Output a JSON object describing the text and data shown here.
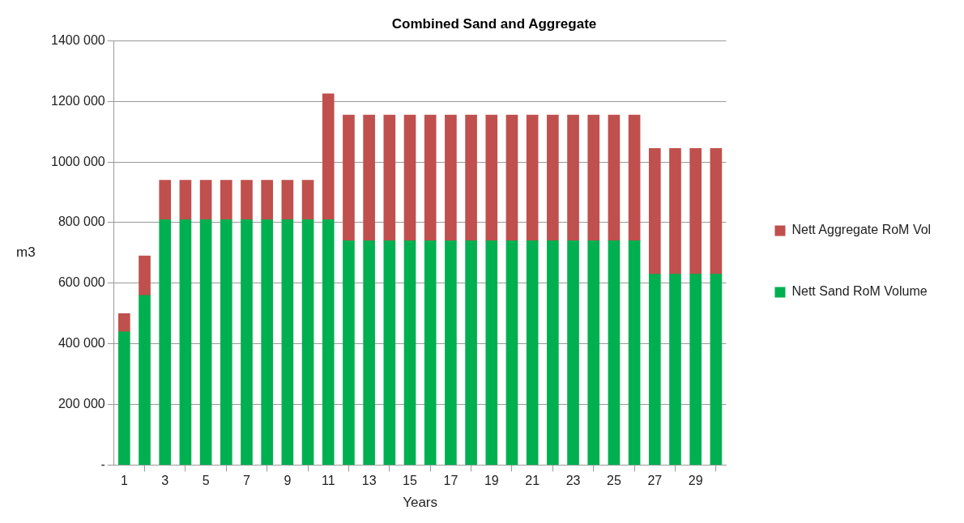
{
  "chart_data": {
    "type": "bar",
    "title": "Combined Sand and Aggregate",
    "xlabel": "Years",
    "ylabel": "m3",
    "x": [
      1,
      2,
      3,
      4,
      5,
      6,
      7,
      8,
      9,
      10,
      11,
      12,
      13,
      14,
      15,
      16,
      17,
      18,
      19,
      20,
      21,
      22,
      23,
      24,
      25,
      26,
      27,
      28,
      29,
      30
    ],
    "xlim": [
      0.5,
      30.5
    ],
    "xticks": [
      1,
      3,
      5,
      7,
      9,
      11,
      13,
      15,
      17,
      19,
      21,
      23,
      25,
      27,
      29
    ],
    "stacked": true,
    "series": [
      {
        "name": "Nett Sand RoM Volume",
        "color": "#00b050",
        "values": [
          440000,
          560000,
          810000,
          810000,
          810000,
          810000,
          810000,
          810000,
          810000,
          810000,
          810000,
          740000,
          740000,
          740000,
          740000,
          740000,
          740000,
          740000,
          740000,
          740000,
          740000,
          740000,
          740000,
          740000,
          740000,
          740000,
          630000,
          630000,
          630000,
          630000
        ]
      },
      {
        "name": "Nett Aggregate RoM Vol",
        "color": "#c0504d",
        "values": [
          60000,
          130000,
          130000,
          130000,
          130000,
          130000,
          130000,
          130000,
          130000,
          130000,
          415000,
          415000,
          415000,
          415000,
          415000,
          415000,
          415000,
          415000,
          415000,
          415000,
          415000,
          415000,
          415000,
          415000,
          415000,
          415000,
          415000,
          415000,
          415000,
          415000
        ]
      }
    ],
    "ylim": [
      0,
      1400000
    ],
    "yticks": [
      {
        "value": 0,
        "label": "-"
      },
      {
        "value": 200000,
        "label": "200 000"
      },
      {
        "value": 400000,
        "label": "400 000"
      },
      {
        "value": 600000,
        "label": "600 000"
      },
      {
        "value": 800000,
        "label": "800 000"
      },
      {
        "value": 1000000,
        "label": "1000 000"
      },
      {
        "value": 1200000,
        "label": "1200 000"
      },
      {
        "value": 1400000,
        "label": "1400 000"
      }
    ],
    "grid": "y",
    "legend": "right"
  }
}
